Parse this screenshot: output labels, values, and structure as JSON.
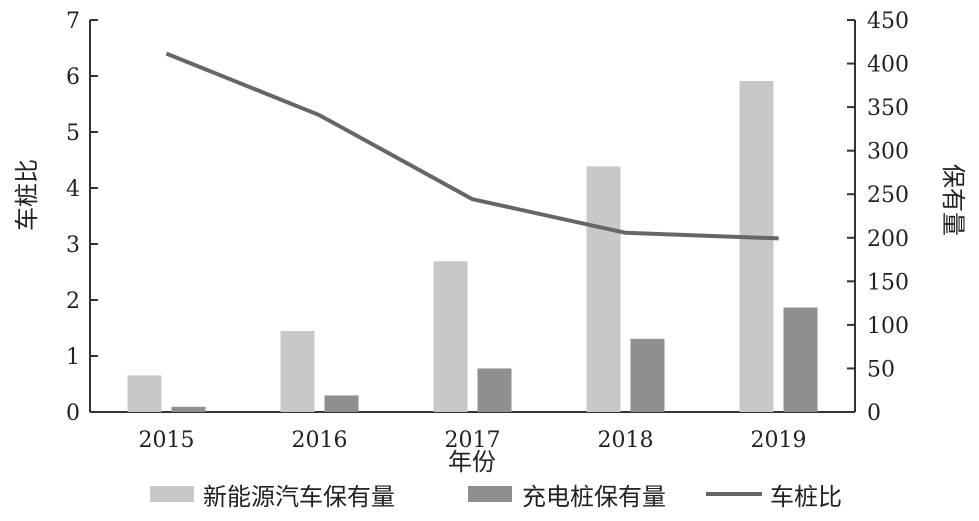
{
  "chart_data": {
    "type": "bar",
    "categories": [
      "2015",
      "2016",
      "2017",
      "2018",
      "2019"
    ],
    "xlabel": "年份",
    "ylabel_left": "车桩比",
    "ylabel_right": "保有量",
    "ylim_left": [
      0,
      7
    ],
    "ylim_right": [
      0,
      450
    ],
    "yticks_left": [
      "0",
      "1",
      "2",
      "3",
      "4",
      "5",
      "6",
      "7"
    ],
    "yticks_right": [
      "0",
      "50",
      "100",
      "150",
      "200",
      "250",
      "300",
      "350",
      "400",
      "450"
    ],
    "series": [
      {
        "name": "新能源汽车保有量",
        "type": "bar",
        "axis": "right",
        "color": "#c8c8c8",
        "values": [
          42,
          93,
          173,
          282,
          380
        ]
      },
      {
        "name": "充电桩保有量",
        "type": "bar",
        "axis": "right",
        "color": "#8f8f8f",
        "values": [
          6,
          19,
          50,
          84,
          120
        ]
      },
      {
        "name": "车桩比",
        "type": "line",
        "axis": "left",
        "color": "#666666",
        "values": [
          6.4,
          5.3,
          3.8,
          3.2,
          3.1
        ]
      }
    ],
    "legend_position": "bottom",
    "grid": false
  }
}
